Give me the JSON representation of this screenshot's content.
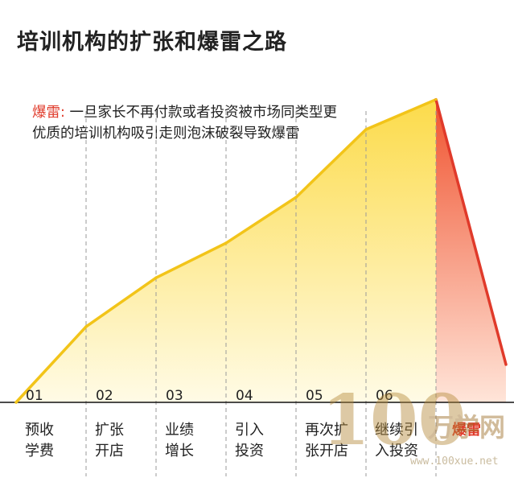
{
  "title": "培训机构的扩张和爆雷之路",
  "note": {
    "highlight": "爆雷:",
    "text": "一旦家长不再付款或者投资被市场同类型更优质的培训机构吸引走则泡沫破裂导致爆雷"
  },
  "chart_data": {
    "type": "area",
    "title": "培训机构的扩张和爆雷之路",
    "xlabel": "",
    "ylabel": "",
    "categories": [
      "01",
      "02",
      "03",
      "04",
      "05",
      "06",
      ""
    ],
    "stage_labels": [
      "预收学费",
      "扩张开店",
      "业绩增长",
      "引入投资",
      "再次扩张开店",
      "继续引入投资",
      "爆雷"
    ],
    "stage_label_lines": [
      [
        "预收",
        "学费"
      ],
      [
        "扩张",
        "开店"
      ],
      [
        "业绩",
        "增长"
      ],
      [
        "引入",
        "投资"
      ],
      [
        "再次扩",
        "张开店"
      ],
      [
        "继续引",
        "入投资"
      ],
      [
        "爆雷"
      ]
    ],
    "x": [
      0,
      1,
      2,
      3,
      4,
      5,
      6,
      7
    ],
    "values": [
      0,
      24,
      39.5,
      50.5,
      65,
      86.5,
      96,
      12
    ],
    "ylim": [
      0,
      100
    ],
    "grid": "vertical dashed separators",
    "colors": {
      "growth_line": "#f2c419",
      "growth_fill_top": "#fcdb4a",
      "growth_fill_bottom": "#fffbe6",
      "collapse_line": "#e03a2a",
      "collapse_fill_top": "#f0532f",
      "collapse_fill_bottom": "#ffe5d9",
      "separator": "#9a9a9a",
      "baseline": "#111111",
      "highlight_text": "#e03a2a"
    }
  },
  "watermark": {
    "number": "100",
    "text": "万学网",
    "url": "www.100xue.net"
  }
}
